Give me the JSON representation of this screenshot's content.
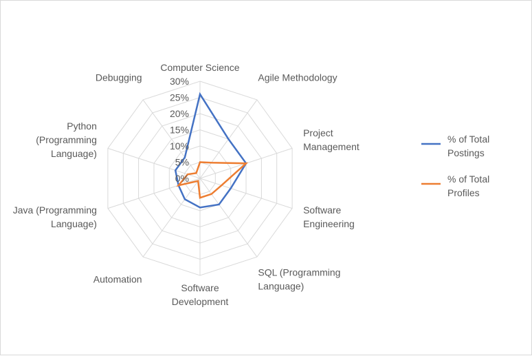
{
  "chart_data": {
    "type": "radar",
    "title": "",
    "categories": [
      [
        "Computer Science"
      ],
      [
        "Agile Methodology"
      ],
      [
        "Project",
        "Management"
      ],
      [
        "Software",
        "Engineering"
      ],
      [
        "SQL (Programming",
        "Language)"
      ],
      [
        "Software",
        "Development"
      ],
      [
        "Automation"
      ],
      [
        "Java (Programming",
        "Language)"
      ],
      [
        "Python",
        "(Programming",
        "Language)"
      ],
      [
        "Debugging"
      ]
    ],
    "axis": {
      "min": 0,
      "max": 30,
      "step": 5,
      "tick_labels": [
        "0%",
        "5%",
        "10%",
        "15%",
        "20%",
        "25%",
        "30%"
      ]
    },
    "series": [
      {
        "name": [
          "% of Total",
          "Postings"
        ],
        "color": "#4472c4",
        "values": [
          26,
          15,
          15,
          10,
          10,
          9,
          8,
          7,
          8,
          8
        ]
      },
      {
        "name": [
          "% of Total",
          "Profiles"
        ],
        "color": "#ed7d31",
        "values": [
          5,
          6,
          15,
          7,
          6,
          6,
          1,
          7,
          4,
          2
        ]
      }
    ],
    "legend_position": "right"
  },
  "colors": {
    "grid": "#d9d9d9",
    "text": "#595959",
    "background": "#ffffff"
  }
}
